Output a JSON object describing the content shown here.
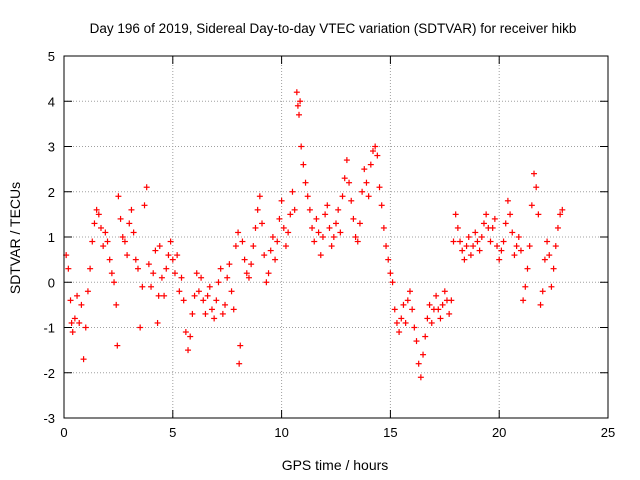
{
  "chart_data": {
    "type": "scatter",
    "title": "Day 196 of 2019, Sidereal Day-to-day VTEC variation (SDTVAR) for receiver hikb",
    "xlabel": "GPS time / hours",
    "ylabel": "SDTVAR / TECUs",
    "xlim": [
      0,
      25
    ],
    "ylim": [
      -3,
      5
    ],
    "xticks": [
      0,
      5,
      10,
      15,
      20,
      25
    ],
    "yticks": [
      -3,
      -2,
      -1,
      0,
      1,
      2,
      3,
      4,
      5
    ],
    "grid": true,
    "marker": "+",
    "color": "#ff0000",
    "series": [
      {
        "name": "SDTVAR",
        "points": [
          [
            0.1,
            0.6
          ],
          [
            0.2,
            0.3
          ],
          [
            0.3,
            -0.4
          ],
          [
            0.35,
            -0.9
          ],
          [
            0.4,
            -1.1
          ],
          [
            0.5,
            -0.8
          ],
          [
            0.6,
            -0.3
          ],
          [
            0.7,
            -0.9
          ],
          [
            0.8,
            -0.5
          ],
          [
            0.9,
            -1.7
          ],
          [
            1.0,
            -1.0
          ],
          [
            1.1,
            -0.2
          ],
          [
            1.2,
            0.3
          ],
          [
            1.3,
            0.9
          ],
          [
            1.4,
            1.3
          ],
          [
            1.5,
            1.6
          ],
          [
            1.6,
            1.5
          ],
          [
            1.7,
            1.2
          ],
          [
            1.8,
            0.8
          ],
          [
            1.9,
            1.1
          ],
          [
            2.0,
            0.9
          ],
          [
            2.1,
            0.5
          ],
          [
            2.2,
            0.2
          ],
          [
            2.3,
            0.0
          ],
          [
            2.4,
            -0.5
          ],
          [
            2.45,
            -1.4
          ],
          [
            2.5,
            1.9
          ],
          [
            2.6,
            1.4
          ],
          [
            2.7,
            1.0
          ],
          [
            2.8,
            0.9
          ],
          [
            2.9,
            0.6
          ],
          [
            3.0,
            1.3
          ],
          [
            3.1,
            1.6
          ],
          [
            3.2,
            1.1
          ],
          [
            3.3,
            0.5
          ],
          [
            3.4,
            0.3
          ],
          [
            3.5,
            -1.0
          ],
          [
            3.6,
            -0.1
          ],
          [
            3.7,
            1.7
          ],
          [
            3.8,
            2.1
          ],
          [
            3.9,
            0.4
          ],
          [
            4.0,
            -0.1
          ],
          [
            4.1,
            0.2
          ],
          [
            4.2,
            0.7
          ],
          [
            4.3,
            -0.9
          ],
          [
            4.35,
            -0.3
          ],
          [
            4.4,
            0.8
          ],
          [
            4.5,
            0.1
          ],
          [
            4.6,
            -0.3
          ],
          [
            4.7,
            0.3
          ],
          [
            4.8,
            0.6
          ],
          [
            4.9,
            0.9
          ],
          [
            5.0,
            0.5
          ],
          [
            5.1,
            0.2
          ],
          [
            5.2,
            0.6
          ],
          [
            5.3,
            -0.2
          ],
          [
            5.4,
            0.1
          ],
          [
            5.5,
            -0.4
          ],
          [
            5.6,
            -1.1
          ],
          [
            5.7,
            -1.5
          ],
          [
            5.8,
            -1.2
          ],
          [
            5.9,
            -0.7
          ],
          [
            6.0,
            -0.3
          ],
          [
            6.1,
            0.2
          ],
          [
            6.2,
            -0.2
          ],
          [
            6.3,
            0.1
          ],
          [
            6.4,
            -0.4
          ],
          [
            6.5,
            -0.7
          ],
          [
            6.6,
            -0.3
          ],
          [
            6.7,
            -0.1
          ],
          [
            6.8,
            -0.6
          ],
          [
            6.9,
            -0.8
          ],
          [
            7.0,
            -0.4
          ],
          [
            7.1,
            0.0
          ],
          [
            7.2,
            0.3
          ],
          [
            7.3,
            -0.7
          ],
          [
            7.4,
            -0.5
          ],
          [
            7.5,
            0.1
          ],
          [
            7.6,
            0.4
          ],
          [
            7.7,
            -0.2
          ],
          [
            7.8,
            -0.6
          ],
          [
            7.9,
            0.8
          ],
          [
            8.0,
            1.1
          ],
          [
            8.05,
            -1.8
          ],
          [
            8.1,
            -1.4
          ],
          [
            8.2,
            0.9
          ],
          [
            8.3,
            0.5
          ],
          [
            8.4,
            0.2
          ],
          [
            8.5,
            0.1
          ],
          [
            8.6,
            0.4
          ],
          [
            8.7,
            0.8
          ],
          [
            8.8,
            1.2
          ],
          [
            8.9,
            1.6
          ],
          [
            9.0,
            1.9
          ],
          [
            9.1,
            1.3
          ],
          [
            9.2,
            0.6
          ],
          [
            9.3,
            0.0
          ],
          [
            9.4,
            0.2
          ],
          [
            9.5,
            0.7
          ],
          [
            9.6,
            1.0
          ],
          [
            9.7,
            0.5
          ],
          [
            9.8,
            0.9
          ],
          [
            9.9,
            1.4
          ],
          [
            10.0,
            1.8
          ],
          [
            10.1,
            1.2
          ],
          [
            10.2,
            0.8
          ],
          [
            10.3,
            1.1
          ],
          [
            10.4,
            1.5
          ],
          [
            10.5,
            2.0
          ],
          [
            10.6,
            1.6
          ],
          [
            10.7,
            4.2
          ],
          [
            10.75,
            3.9
          ],
          [
            10.8,
            3.7
          ],
          [
            10.85,
            4.0
          ],
          [
            10.9,
            3.0
          ],
          [
            11.0,
            2.6
          ],
          [
            11.1,
            2.2
          ],
          [
            11.2,
            1.9
          ],
          [
            11.3,
            1.6
          ],
          [
            11.4,
            1.2
          ],
          [
            11.5,
            0.9
          ],
          [
            11.6,
            1.4
          ],
          [
            11.7,
            1.1
          ],
          [
            11.8,
            0.6
          ],
          [
            11.9,
            1.0
          ],
          [
            12.0,
            1.5
          ],
          [
            12.1,
            1.7
          ],
          [
            12.2,
            1.2
          ],
          [
            12.3,
            0.8
          ],
          [
            12.4,
            1.0
          ],
          [
            12.5,
            1.3
          ],
          [
            12.6,
            1.6
          ],
          [
            12.7,
            1.1
          ],
          [
            12.8,
            1.9
          ],
          [
            12.9,
            2.3
          ],
          [
            13.0,
            2.7
          ],
          [
            13.1,
            2.2
          ],
          [
            13.2,
            1.8
          ],
          [
            13.3,
            1.4
          ],
          [
            13.4,
            1.0
          ],
          [
            13.5,
            0.9
          ],
          [
            13.6,
            1.3
          ],
          [
            13.7,
            2.0
          ],
          [
            13.8,
            2.5
          ],
          [
            13.9,
            2.2
          ],
          [
            14.0,
            1.9
          ],
          [
            14.1,
            2.6
          ],
          [
            14.2,
            2.9
          ],
          [
            14.3,
            3.0
          ],
          [
            14.4,
            2.8
          ],
          [
            14.5,
            2.1
          ],
          [
            14.6,
            1.7
          ],
          [
            14.7,
            1.2
          ],
          [
            14.8,
            0.8
          ],
          [
            14.9,
            0.5
          ],
          [
            15.0,
            0.2
          ],
          [
            15.1,
            0.0
          ],
          [
            15.2,
            -0.6
          ],
          [
            15.3,
            -0.9
          ],
          [
            15.4,
            -1.1
          ],
          [
            15.5,
            -0.8
          ],
          [
            15.6,
            -0.5
          ],
          [
            15.7,
            -0.9
          ],
          [
            15.8,
            -0.4
          ],
          [
            15.9,
            -0.2
          ],
          [
            16.0,
            -0.6
          ],
          [
            16.1,
            -1.0
          ],
          [
            16.2,
            -1.3
          ],
          [
            16.3,
            -1.8
          ],
          [
            16.4,
            -2.1
          ],
          [
            16.5,
            -1.6
          ],
          [
            16.6,
            -1.2
          ],
          [
            16.7,
            -0.8
          ],
          [
            16.8,
            -0.5
          ],
          [
            16.9,
            -0.9
          ],
          [
            17.0,
            -0.6
          ],
          [
            17.1,
            -0.3
          ],
          [
            17.2,
            -0.6
          ],
          [
            17.3,
            -0.8
          ],
          [
            17.4,
            -0.5
          ],
          [
            17.5,
            -0.2
          ],
          [
            17.6,
            -0.4
          ],
          [
            17.7,
            -0.7
          ],
          [
            17.8,
            -0.4
          ],
          [
            17.9,
            0.9
          ],
          [
            18.0,
            1.5
          ],
          [
            18.1,
            1.2
          ],
          [
            18.2,
            0.9
          ],
          [
            18.3,
            0.7
          ],
          [
            18.4,
            0.5
          ],
          [
            18.5,
            0.8
          ],
          [
            18.6,
            1.0
          ],
          [
            18.7,
            0.6
          ],
          [
            18.8,
            0.8
          ],
          [
            18.9,
            1.1
          ],
          [
            19.0,
            0.9
          ],
          [
            19.1,
            0.7
          ],
          [
            19.2,
            1.0
          ],
          [
            19.3,
            1.3
          ],
          [
            19.4,
            1.5
          ],
          [
            19.5,
            1.2
          ],
          [
            19.6,
            0.9
          ],
          [
            19.7,
            1.2
          ],
          [
            19.8,
            1.4
          ],
          [
            19.9,
            0.8
          ],
          [
            20.0,
            0.5
          ],
          [
            20.1,
            0.7
          ],
          [
            20.2,
            0.9
          ],
          [
            20.3,
            1.3
          ],
          [
            20.4,
            1.8
          ],
          [
            20.5,
            1.5
          ],
          [
            20.6,
            1.1
          ],
          [
            20.7,
            0.6
          ],
          [
            20.8,
            0.8
          ],
          [
            20.9,
            1.0
          ],
          [
            21.0,
            0.7
          ],
          [
            21.1,
            -0.4
          ],
          [
            21.2,
            -0.1
          ],
          [
            21.3,
            0.3
          ],
          [
            21.4,
            0.8
          ],
          [
            21.5,
            1.7
          ],
          [
            21.6,
            2.4
          ],
          [
            21.7,
            2.1
          ],
          [
            21.8,
            1.5
          ],
          [
            21.9,
            -0.5
          ],
          [
            22.0,
            -0.2
          ],
          [
            22.1,
            0.5
          ],
          [
            22.2,
            0.9
          ],
          [
            22.3,
            0.6
          ],
          [
            22.4,
            -0.1
          ],
          [
            22.5,
            0.3
          ],
          [
            22.6,
            0.8
          ],
          [
            22.7,
            1.2
          ],
          [
            22.8,
            1.5
          ],
          [
            22.9,
            1.6
          ]
        ]
      }
    ]
  }
}
